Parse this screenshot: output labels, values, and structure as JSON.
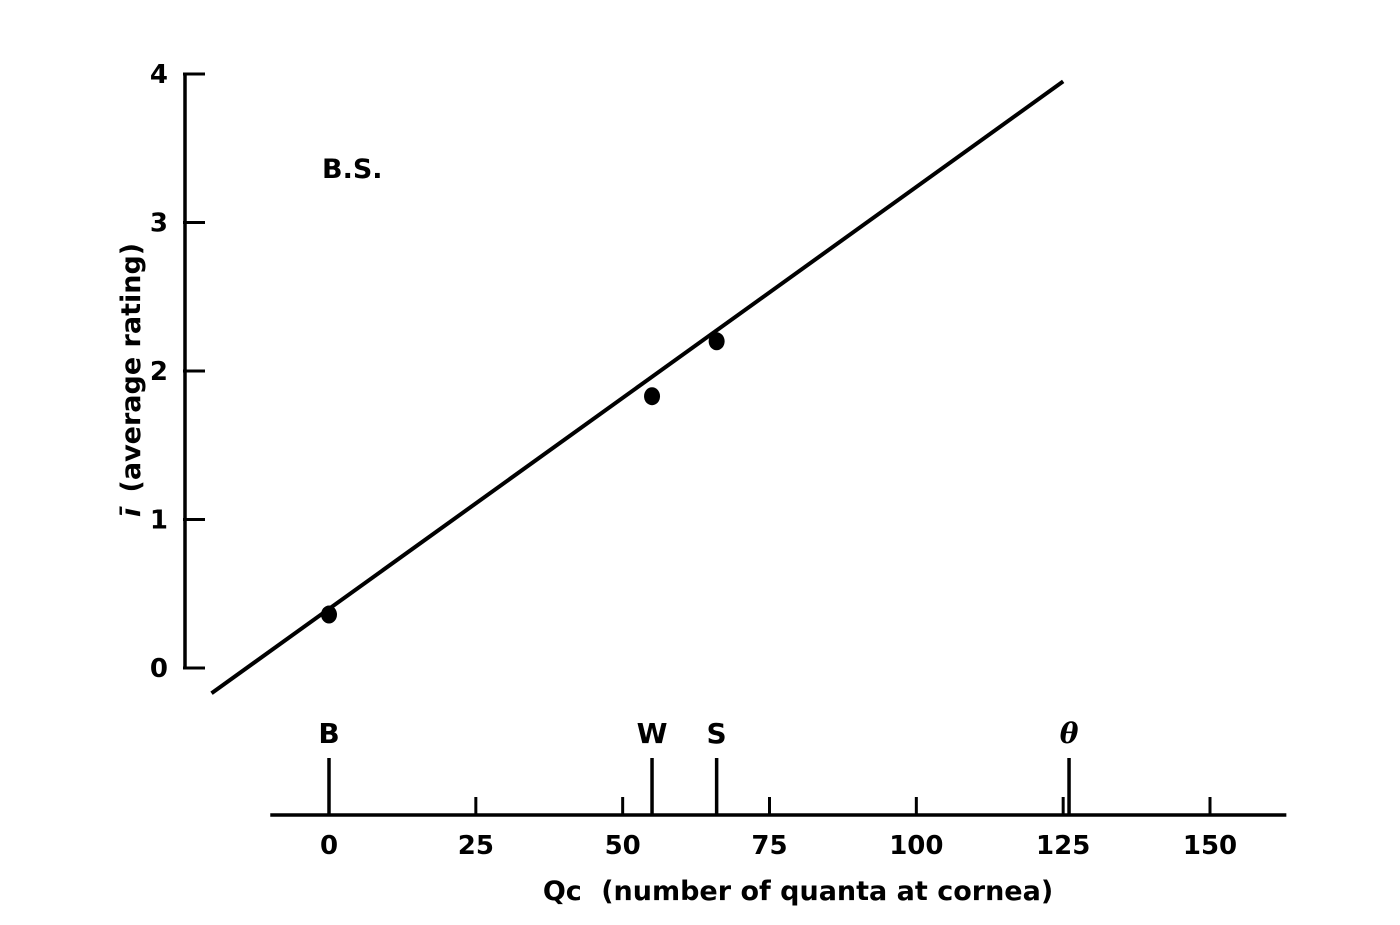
{
  "chart_data": {
    "type": "line",
    "annotation": "B.S.",
    "ylabel_symbol": "ī",
    "ylabel": "(average rating)",
    "xlabel_symbol": "Qc",
    "xlabel": "(number of quanta at cornea)",
    "ylim": [
      0,
      4
    ],
    "yticks": [
      0,
      1,
      2,
      3,
      4
    ],
    "xlim": [
      -10,
      163
    ],
    "xticks": [
      0,
      25,
      50,
      75,
      100,
      125,
      150
    ],
    "points": [
      {
        "x": 0,
        "y": 0.36
      },
      {
        "x": 55,
        "y": 1.83
      },
      {
        "x": 66,
        "y": 2.2
      }
    ],
    "fit_line": {
      "x": [
        -20,
        125
      ],
      "y": [
        -0.17,
        3.95
      ]
    },
    "markers": [
      {
        "label": "B",
        "x": 0
      },
      {
        "label": "W",
        "x": 55
      },
      {
        "label": "S",
        "x": 66
      },
      {
        "label": "θ",
        "x": 126
      }
    ],
    "grid": false
  }
}
